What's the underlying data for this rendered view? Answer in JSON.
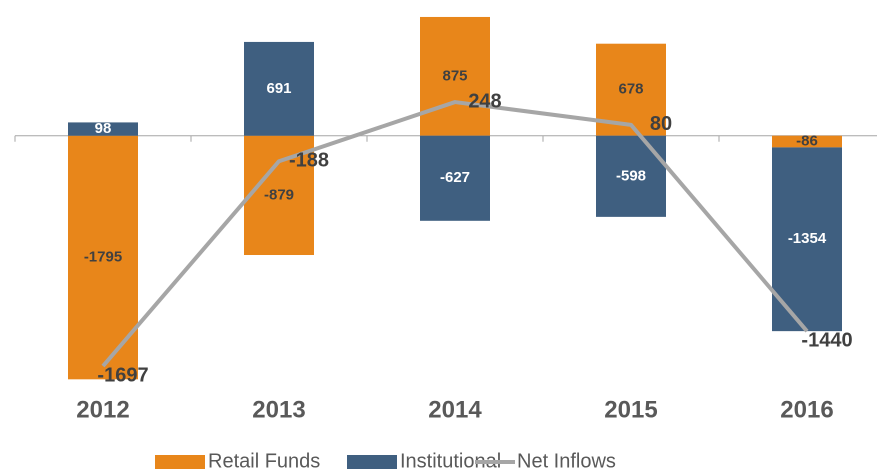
{
  "chart_data": {
    "type": "bar",
    "stacked": true,
    "categories": [
      "2012",
      "2013",
      "2014",
      "2015",
      "2016"
    ],
    "series": [
      {
        "name": "Retail Funds",
        "color": "#e8861a",
        "values": [
          -1795,
          -879,
          875,
          678,
          -86
        ]
      },
      {
        "name": "Institutional",
        "color": "#3f5f80",
        "values": [
          98,
          691,
          -627,
          -598,
          -1354
        ]
      },
      {
        "name": "Net Inflows",
        "type": "line",
        "color": "#a6a6a6",
        "values": [
          -1697,
          -188,
          248,
          80,
          -1440
        ]
      }
    ],
    "ylim": [
      -1800,
      1000
    ],
    "legend": "bottom"
  }
}
